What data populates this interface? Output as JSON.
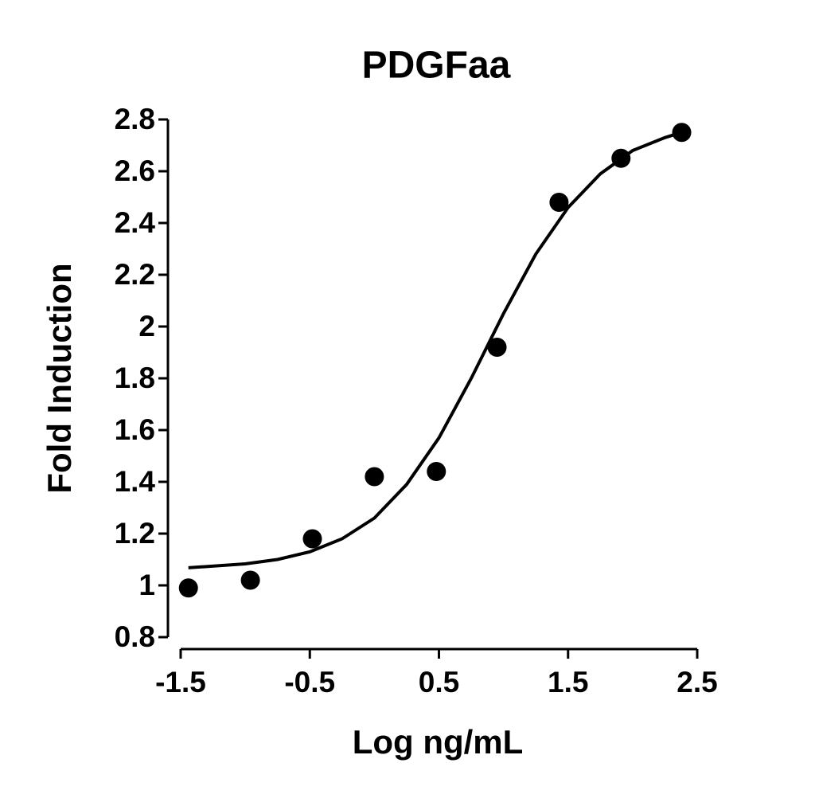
{
  "chart_data": {
    "type": "scatter",
    "title": "PDGFaa",
    "x_label": "Log ng/mL",
    "y_label": "Fold Induction",
    "xlim": [
      -1.5,
      2.5
    ],
    "xticks": [
      -1.5,
      -0.5,
      0.5,
      1.5,
      2.5
    ],
    "ylim": [
      0.8,
      2.8
    ],
    "yticks": [
      0.8,
      1.0,
      1.2,
      1.4,
      1.6,
      1.8,
      2.0,
      2.2,
      2.4,
      2.6,
      2.8
    ],
    "series": [
      {
        "mark": "dot",
        "color": "#000000",
        "x": [
          -1.44,
          -0.96,
          -0.48,
          0.0,
          0.48,
          0.95,
          1.43,
          1.91,
          2.38
        ],
        "values": [
          0.99,
          1.02,
          1.18,
          1.42,
          1.44,
          1.92,
          2.48,
          2.65,
          2.75
        ]
      },
      {
        "mark": "line",
        "color": "#000000",
        "x": [
          -1.44,
          -1.0,
          -0.75,
          -0.5,
          -0.25,
          0.0,
          0.25,
          0.5,
          0.75,
          1.0,
          1.25,
          1.5,
          1.75,
          2.0,
          2.25,
          2.38
        ],
        "values": [
          1.068,
          1.083,
          1.1,
          1.13,
          1.18,
          1.26,
          1.39,
          1.57,
          1.8,
          2.05,
          2.28,
          2.46,
          2.59,
          2.68,
          2.73,
          2.75
        ]
      }
    ]
  }
}
